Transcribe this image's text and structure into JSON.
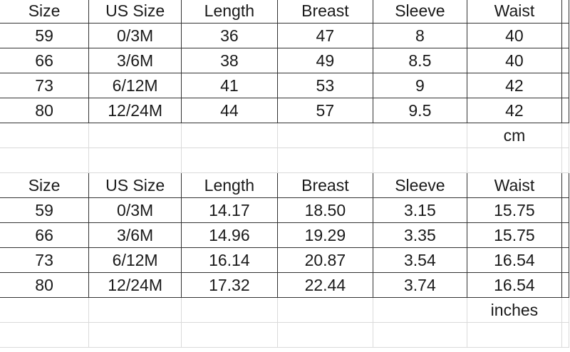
{
  "tables": [
    {
      "headers": [
        "Size",
        "US Size",
        "Length",
        "Breast",
        "Sleeve",
        "Waist"
      ],
      "rows": [
        [
          "59",
          "0/3M",
          "36",
          "47",
          "8",
          "40"
        ],
        [
          "66",
          "3/6M",
          "38",
          "49",
          "8.5",
          "40"
        ],
        [
          "73",
          "6/12M",
          "41",
          "53",
          "9",
          "42"
        ],
        [
          "80",
          "12/24M",
          "44",
          "57",
          "9.5",
          "42"
        ]
      ],
      "unit": "cm"
    },
    {
      "headers": [
        "Size",
        "US Size",
        "Length",
        "Breast",
        "Sleeve",
        "Waist"
      ],
      "rows": [
        [
          "59",
          "0/3M",
          "14.17",
          "18.50",
          "3.15",
          "15.75"
        ],
        [
          "66",
          "3/6M",
          "14.96",
          "19.29",
          "3.35",
          "15.75"
        ],
        [
          "73",
          "6/12M",
          "16.14",
          "20.87",
          "3.54",
          "16.54"
        ],
        [
          "80",
          "12/24M",
          "17.32",
          "22.44",
          "3.74",
          "16.54"
        ]
      ],
      "unit": "inches"
    }
  ]
}
